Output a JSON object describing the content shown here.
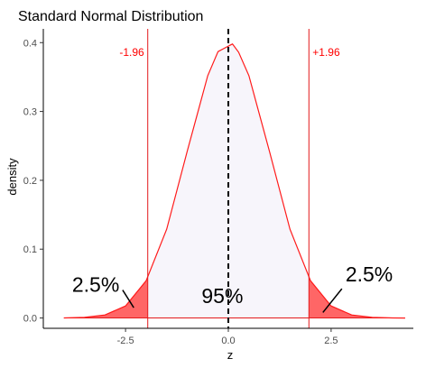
{
  "chart_data": {
    "type": "area",
    "title": "Standard Normal Distribution",
    "xlabel": "z",
    "ylabel": "density",
    "xlim": [
      -4.5,
      4.5
    ],
    "ylim": [
      -0.015,
      0.42
    ],
    "x_ticks": [
      -2.5,
      0.0,
      2.5
    ],
    "x_tick_labels": [
      "-2.5",
      "0.0",
      "2.5"
    ],
    "y_ticks": [
      0.0,
      0.1,
      0.2,
      0.3,
      0.4
    ],
    "y_tick_labels": [
      "0.0",
      "0.1",
      "0.2",
      "0.3",
      "0.4"
    ],
    "grid": false,
    "density_curve": {
      "x": [
        -4.0,
        -3.5,
        -3.0,
        -2.5,
        -2.0,
        -1.5,
        -1.0,
        -0.5,
        -0.25,
        0.0,
        0.1,
        0.25,
        0.5,
        1.0,
        1.5,
        2.0,
        2.5,
        3.0,
        3.5,
        4.0,
        4.3
      ],
      "y": [
        0.0001,
        0.0009,
        0.0044,
        0.0175,
        0.054,
        0.129,
        0.242,
        0.352,
        0.387,
        0.395,
        0.398,
        0.386,
        0.352,
        0.242,
        0.129,
        0.054,
        0.0175,
        0.0044,
        0.0009,
        0.0001,
        0.0
      ]
    },
    "mean_line": {
      "x": 0.0,
      "style": "dashed",
      "color": "#000000"
    },
    "critical_lines": [
      {
        "x": -1.96,
        "label": "-1.96"
      },
      {
        "x": 1.96,
        "label": "+1.96"
      }
    ],
    "regions": [
      {
        "label": "2.5%",
        "from": -4.0,
        "to": -1.96,
        "fill": "#ff6666",
        "label_at": [
          -3.8,
          0.038
        ],
        "pointer_to": [
          -2.3,
          0.015
        ]
      },
      {
        "label": "95%",
        "from": -1.96,
        "to": 1.96,
        "fill": "#f7f5fb",
        "label_at": [
          -0.65,
          0.022
        ],
        "pointer_to": null
      },
      {
        "label": "2.5%",
        "from": 1.96,
        "to": 4.3,
        "fill": "#ff6666",
        "label_at": [
          2.85,
          0.053
        ],
        "pointer_to": [
          2.3,
          0.008
        ]
      }
    ],
    "colors": {
      "curve": "#ff1a1a",
      "critical": "#e31a1c",
      "critical_label": "#ff0000",
      "tail_fill": "#ff6666",
      "center_fill": "#f7f5fb",
      "baseline": "#e31a1c"
    }
  }
}
